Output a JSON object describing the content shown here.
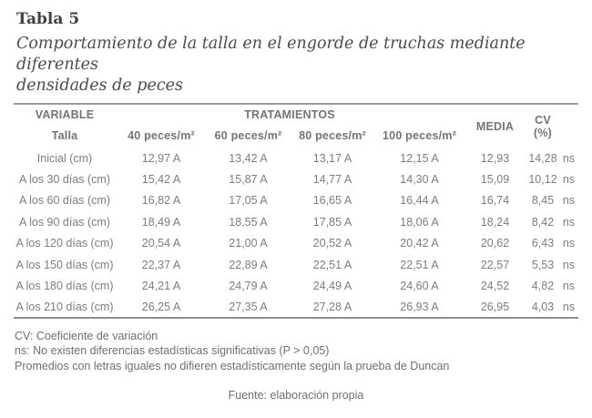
{
  "title": "Tabla 5",
  "caption": {
    "line1": "Comportamiento de la talla en el engorde de truchas mediante diferentes",
    "line2": "densidades de peces"
  },
  "table": {
    "header": {
      "variable_label": "VARIABLE",
      "variable_sublabel": "Talla",
      "treatments_label": "TRATAMIENTOS",
      "treatment_columns": {
        "t40": "40 peces/m²",
        "t60": "60 peces/m²",
        "t80": "80 peces/m²",
        "t100": "100 peces/m²"
      },
      "media_label": "MEDIA",
      "cv_label": "CV",
      "cv_unit": "(%)"
    },
    "rows": [
      {
        "variable": "Inicial (cm)",
        "values": [
          "12,97 A",
          "13,42 A",
          "13,17 A",
          "12,15 A"
        ],
        "media": "12,93",
        "cv": "14,28",
        "sig": "ns"
      },
      {
        "variable": "A los 30 días (cm)",
        "values": [
          "15,42 A",
          "15,87 A",
          "14,77 A",
          "14,30 A"
        ],
        "media": "15,09",
        "cv": "10,12",
        "sig": "ns"
      },
      {
        "variable": "A los 60 días (cm)",
        "values": [
          "16,82 A",
          "17,05 A",
          "16,65 A",
          "16,44 A"
        ],
        "media": "16,74",
        "cv": "8,45",
        "sig": "ns"
      },
      {
        "variable": "A los 90 días (cm)",
        "values": [
          "18,49 A",
          "18,55 A",
          "17,85 A",
          "18,06 A"
        ],
        "media": "18,24",
        "cv": "8,42",
        "sig": "ns"
      },
      {
        "variable": "A los 120 días (cm)",
        "values": [
          "20,54 A",
          "21,00 A",
          "20,52 A",
          "20,42 A"
        ],
        "media": "20,62",
        "cv": "6,43",
        "sig": "ns"
      },
      {
        "variable": "A los 150 días (cm)",
        "values": [
          "22,37 A",
          "22,89 A",
          "22,51 A",
          "22,51 A"
        ],
        "media": "22,57",
        "cv": "5,53",
        "sig": "ns"
      },
      {
        "variable": "A los 180 días (cm)",
        "values": [
          "24,21 A",
          "24,79 A",
          "24,49 A",
          "24,60 A"
        ],
        "media": "24,52",
        "cv": "4,82",
        "sig": "ns"
      },
      {
        "variable": "A los 210 días (cm)",
        "values": [
          "26,25 A",
          "27,35 A",
          "27,28 A",
          "26,93 A"
        ],
        "media": "26,95",
        "cv": "4,03",
        "sig": "ns"
      }
    ]
  },
  "footnotes": {
    "line1": "CV: Coeficiente de variación",
    "line2": "ns: No existen diferencias estadísticas significativas (P > 0,05)",
    "line3": "Promedios con letras iguales no difieren estadísticamente según la prueba de Duncan"
  },
  "source": "Fuente: elaboración propia",
  "colors": {
    "background": "#ffffff",
    "title_text": "#3e4245",
    "caption_text": "#4c4c4c",
    "table_header_text": "#747474",
    "table_body_text": "#7d7d7d",
    "rule_top": "#9d9d9d",
    "rule_bottom": "#8f8f8f",
    "footnote_text": "#6f6f6f"
  }
}
